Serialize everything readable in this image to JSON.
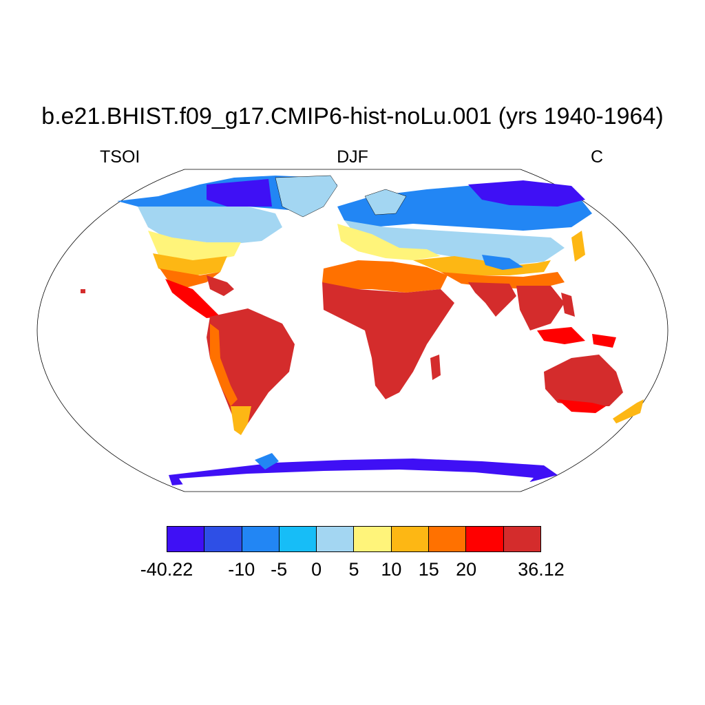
{
  "title": "b.e21.BHIST.f09_g17.CMIP6-hist-noLu.001 (yrs 1940-1964)",
  "left_string": "TSOI",
  "center_string": "DJF",
  "right_string": "C",
  "colorbar": {
    "colors": [
      "#3f10f5",
      "#2e4fe6",
      "#2286f4",
      "#17bdf7",
      "#a3d6f2",
      "#fff47a",
      "#fdb714",
      "#ff7100",
      "#ff0000",
      "#d42c2c"
    ],
    "tick_labels": [
      "-40.22",
      "-10",
      "-5",
      "0",
      "5",
      "10",
      "15",
      "20",
      "36.12"
    ]
  }
}
